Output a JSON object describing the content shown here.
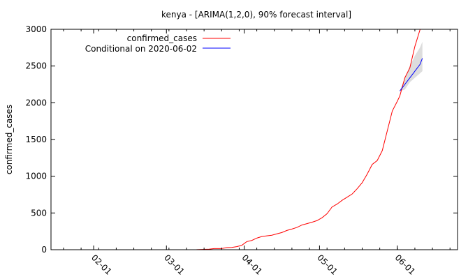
{
  "chart_data": {
    "type": "line",
    "title": "kenya -  [ARIMA(1,2,0), 90% forecast interval]",
    "xlabel": "",
    "ylabel": "confirmed_cases",
    "ylim": [
      0,
      3000
    ],
    "xlim": [
      "2020-01-15",
      "2020-06-25"
    ],
    "y_ticks": [
      "0",
      "500",
      "1000",
      "1500",
      "2000",
      "2500",
      "3000"
    ],
    "x_ticks": [
      {
        "date": "2020-02-01",
        "label": "02-01"
      },
      {
        "date": "2020-03-01",
        "label": "03-01"
      },
      {
        "date": "2020-04-01",
        "label": "04-01"
      },
      {
        "date": "2020-05-01",
        "label": "05-01"
      },
      {
        "date": "2020-06-01",
        "label": "06-01"
      }
    ],
    "legend_position": "top-left",
    "grid": false,
    "series": [
      {
        "name": "confirmed_cases",
        "color": "#ff0000",
        "points": [
          [
            "2020-03-13",
            1
          ],
          [
            "2020-03-15",
            3
          ],
          [
            "2020-03-18",
            7
          ],
          [
            "2020-03-20",
            15
          ],
          [
            "2020-03-23",
            16
          ],
          [
            "2020-03-25",
            28
          ],
          [
            "2020-03-27",
            31
          ],
          [
            "2020-03-29",
            42
          ],
          [
            "2020-03-31",
            59
          ],
          [
            "2020-04-02",
            110
          ],
          [
            "2020-04-04",
            126
          ],
          [
            "2020-04-06",
            158
          ],
          [
            "2020-04-08",
            179
          ],
          [
            "2020-04-10",
            189
          ],
          [
            "2020-04-12",
            197
          ],
          [
            "2020-04-14",
            216
          ],
          [
            "2020-04-16",
            234
          ],
          [
            "2020-04-18",
            262
          ],
          [
            "2020-04-20",
            281
          ],
          [
            "2020-04-22",
            303
          ],
          [
            "2020-04-24",
            336
          ],
          [
            "2020-04-26",
            355
          ],
          [
            "2020-04-28",
            374
          ],
          [
            "2020-04-30",
            396
          ],
          [
            "2020-05-02",
            435
          ],
          [
            "2020-05-04",
            490
          ],
          [
            "2020-05-06",
            582
          ],
          [
            "2020-05-08",
            621
          ],
          [
            "2020-05-10",
            672
          ],
          [
            "2020-05-12",
            715
          ],
          [
            "2020-05-14",
            758
          ],
          [
            "2020-05-16",
            830
          ],
          [
            "2020-05-18",
            912
          ],
          [
            "2020-05-20",
            1029
          ],
          [
            "2020-05-22",
            1161
          ],
          [
            "2020-05-24",
            1214
          ],
          [
            "2020-05-26",
            1348
          ],
          [
            "2020-05-28",
            1618
          ],
          [
            "2020-05-30",
            1888
          ],
          [
            "2020-06-01",
            2021
          ],
          [
            "2020-06-02",
            2093
          ],
          [
            "2020-06-04",
            2340
          ],
          [
            "2020-06-06",
            2475
          ],
          [
            "2020-06-08",
            2767
          ],
          [
            "2020-06-10",
            2989
          ],
          [
            "2020-06-11",
            3094
          ]
        ]
      },
      {
        "name": "Conditional on 2020-06-02",
        "color": "#0000ff",
        "points": [
          [
            "2020-06-02",
            2160
          ],
          [
            "2020-06-04",
            2250
          ],
          [
            "2020-06-06",
            2340
          ],
          [
            "2020-06-08",
            2430
          ],
          [
            "2020-06-10",
            2520
          ],
          [
            "2020-06-11",
            2605
          ]
        ],
        "interval_upper": [
          2160,
          2340,
          2500,
          2640,
          2750,
          2830
        ],
        "interval_lower": [
          2160,
          2180,
          2280,
          2340,
          2400,
          2430
        ],
        "interval_color": "#dddddd"
      }
    ]
  }
}
